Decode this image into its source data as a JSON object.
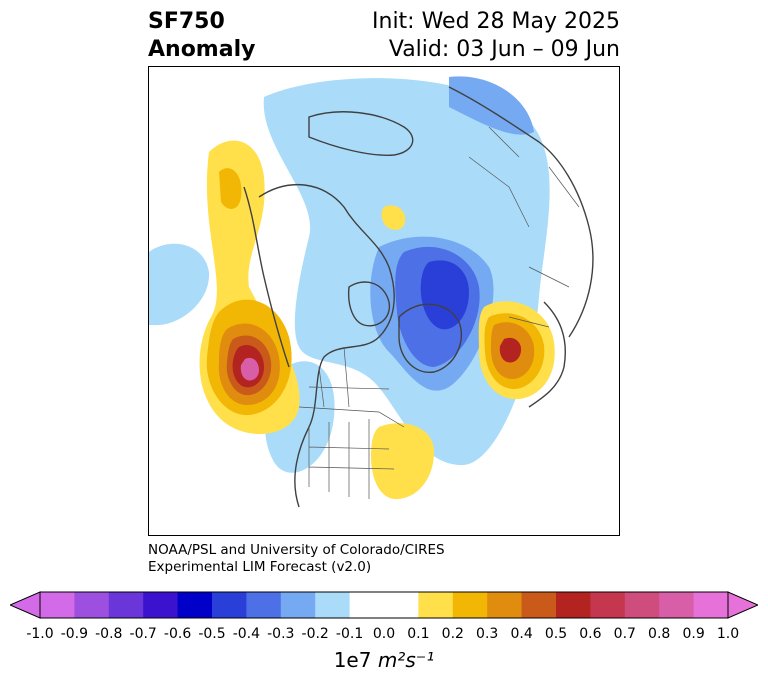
{
  "title": {
    "line1_left": "SF750",
    "line2_left": "Anomaly",
    "line1_right": "Init: Wed 28 May 2025",
    "line2_right": "Valid: 03 Jun – 09 Jun"
  },
  "credit": {
    "line1": "NOAA/PSL and University of Colorado/CIRES",
    "line2": "Experimental LIM Forecast (v2.0)"
  },
  "colorbar": {
    "ticks": [
      "-1.0",
      "-0.9",
      "-0.8",
      "-0.7",
      "-0.6",
      "-0.5",
      "-0.4",
      "-0.3",
      "-0.2",
      "-0.1",
      "0.0",
      "0.1",
      "0.2",
      "0.3",
      "0.4",
      "0.5",
      "0.6",
      "0.7",
      "0.8",
      "0.9",
      "1.0"
    ],
    "colors": [
      "#d36be8",
      "#9d4fe0",
      "#6a35d9",
      "#3b13cf",
      "#0000c8",
      "#2a3fd8",
      "#4d70e6",
      "#75aaf2",
      "#aadcfa",
      "#ffffff",
      "#ffffff",
      "#ffe04a",
      "#f2b705",
      "#e08c0f",
      "#c95a1a",
      "#b3231f",
      "#c4374f",
      "#cf4d7d",
      "#d85ea8",
      "#e671d9"
    ],
    "under_color": "#d36be8",
    "over_color": "#e671d9",
    "units_prefix": "1e7",
    "units_math": "m²s⁻¹"
  },
  "map": {
    "projection": "polar-stereographic",
    "features": [
      "coastlines",
      "country-borders",
      "us-state-borders",
      "canadian-province-borders"
    ],
    "anomaly_centers": [
      {
        "region": "NE Pacific / Gulf of Alaska",
        "sign": "positive",
        "peak": 0.8
      },
      {
        "region": "NW Atlantic / Labrador Sea",
        "sign": "negative",
        "peak": -0.5
      },
      {
        "region": "Eastern North Atlantic",
        "sign": "positive",
        "peak": 0.6
      },
      {
        "region": "Eastern United States",
        "sign": "positive",
        "peak": 0.2
      },
      {
        "region": "Arctic / Siberia",
        "sign": "negative",
        "peak": -0.2
      }
    ]
  }
}
